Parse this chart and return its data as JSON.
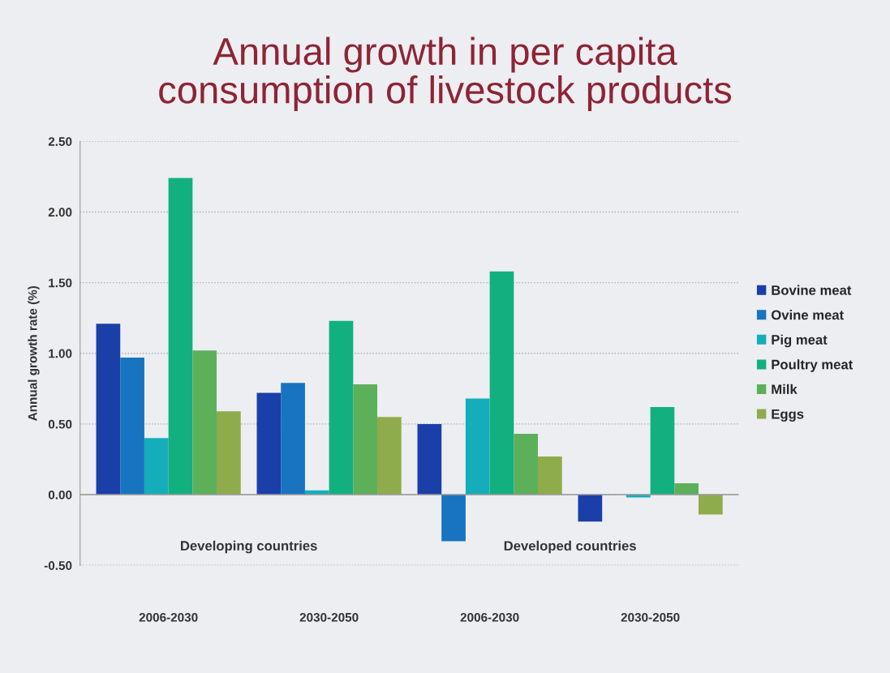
{
  "chart_data": {
    "type": "bar",
    "title": "Annual growth in per capita\nconsumption of livestock products",
    "ylabel": "Annual growth rate (%)",
    "categories": [
      "2006-2030",
      "2030-2050",
      "2006-2030",
      "2030-2050"
    ],
    "series": [
      {
        "name": "Bovine meat",
        "color": "#1a3fa8",
        "values": [
          1.21,
          0.72,
          0.5,
          -0.19
        ]
      },
      {
        "name": "Ovine meat",
        "color": "#1874c0",
        "values": [
          0.97,
          0.79,
          -0.33,
          0.0
        ]
      },
      {
        "name": "Pig meat",
        "color": "#14aebb",
        "values": [
          0.4,
          0.03,
          0.68,
          -0.02
        ]
      },
      {
        "name": "Poultry meat",
        "color": "#12b07f",
        "values": [
          2.24,
          1.23,
          1.58,
          0.62
        ]
      },
      {
        "name": "Milk",
        "color": "#5db05a",
        "values": [
          1.02,
          0.78,
          0.43,
          0.08
        ]
      },
      {
        "name": "Eggs",
        "color": "#8fac4c",
        "values": [
          0.59,
          0.55,
          0.27,
          -0.14
        ]
      }
    ],
    "annotations": [
      "Developing countries",
      "Developed countries"
    ],
    "ylim": [
      -0.5,
      2.5
    ],
    "yticks": [
      {
        "value": -0.5,
        "label": "-0.50"
      },
      {
        "value": 0,
        "label": "0.00"
      },
      {
        "value": 0.5,
        "label": "0.50"
      },
      {
        "value": 1,
        "label": "1.00"
      },
      {
        "value": 1.5,
        "label": "1.50"
      },
      {
        "value": 2,
        "label": "2.00"
      },
      {
        "value": 2.5,
        "label": "2.50"
      }
    ],
    "grid": "y",
    "legend": "right"
  }
}
